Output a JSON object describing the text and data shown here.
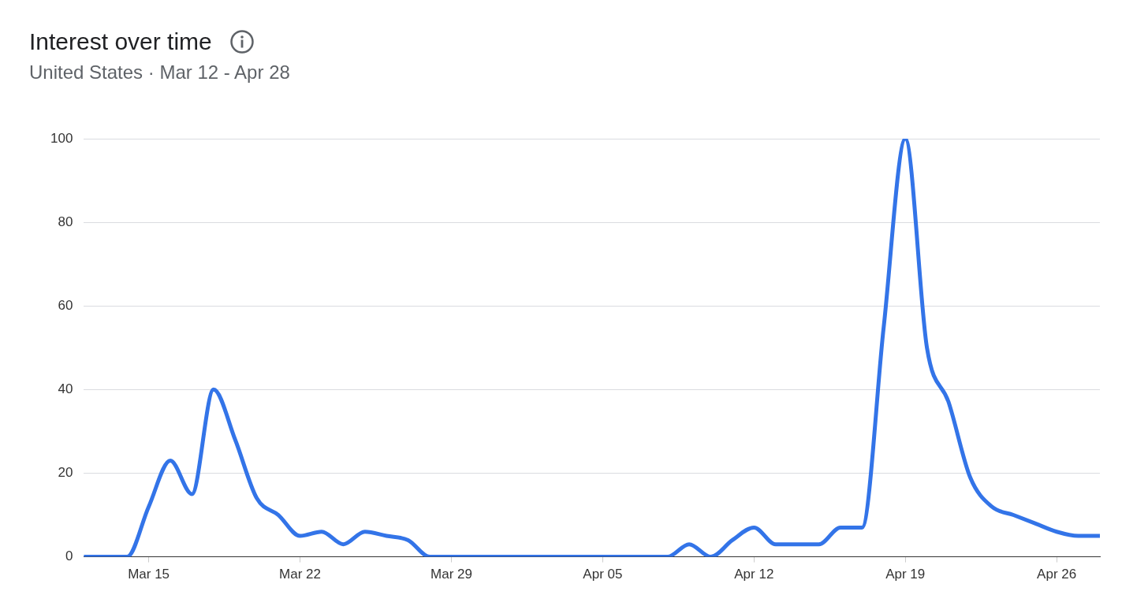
{
  "chart_data": {
    "type": "line",
    "title": "Interest over time",
    "subtitle": "United States · Mar 12 - Apr 28",
    "x": [
      "--03-12",
      "--03-13",
      "--03-14",
      "--03-15",
      "--03-16",
      "--03-17",
      "--03-18",
      "--03-19",
      "--03-20",
      "--03-21",
      "--03-22",
      "--03-23",
      "--03-24",
      "--03-25",
      "--03-26",
      "--03-27",
      "--03-28",
      "--03-29",
      "--03-30",
      "--03-31",
      "--04-01",
      "--04-02",
      "--04-03",
      "--04-04",
      "--04-05",
      "--04-06",
      "--04-07",
      "--04-08",
      "--04-09",
      "--04-10",
      "--04-11",
      "--04-12",
      "--04-13",
      "--04-14",
      "--04-15",
      "--04-16",
      "--04-17",
      "--04-18",
      "--04-19",
      "--04-20",
      "--04-21",
      "--04-22",
      "--04-23",
      "--04-24",
      "--04-25",
      "--04-26",
      "--04-27",
      "--04-28"
    ],
    "series": [
      {
        "color": "#3374e8",
        "values": [
          0,
          0,
          0,
          12,
          23,
          15,
          40,
          28,
          14,
          10,
          5,
          6,
          3,
          6,
          5,
          4,
          0,
          0,
          0,
          0,
          0,
          0,
          0,
          0,
          0,
          0,
          0,
          0,
          3,
          0,
          4,
          7,
          3,
          3,
          3,
          7,
          7,
          55,
          100,
          50,
          37,
          19,
          12,
          10,
          8,
          6,
          5,
          5
        ]
      }
    ],
    "xlim": [
      "--03-12",
      "--04-28"
    ],
    "xticks": [
      {
        "value": "--03-15",
        "label": "Mar 15"
      },
      {
        "value": "--03-22",
        "label": "Mar 22"
      },
      {
        "value": "--03-29",
        "label": "Mar 29"
      },
      {
        "value": "--04-05",
        "label": "Apr 05"
      },
      {
        "value": "--04-12",
        "label": "Apr 12"
      },
      {
        "value": "--04-19",
        "label": "Apr 19"
      },
      {
        "value": "--04-26",
        "label": "Apr 26"
      }
    ],
    "ylim": [
      0,
      100
    ],
    "yticks": [
      0,
      20,
      40,
      60,
      80,
      100
    ],
    "grid": "y",
    "legend": false,
    "marker": "none",
    "line_style": "solid"
  }
}
